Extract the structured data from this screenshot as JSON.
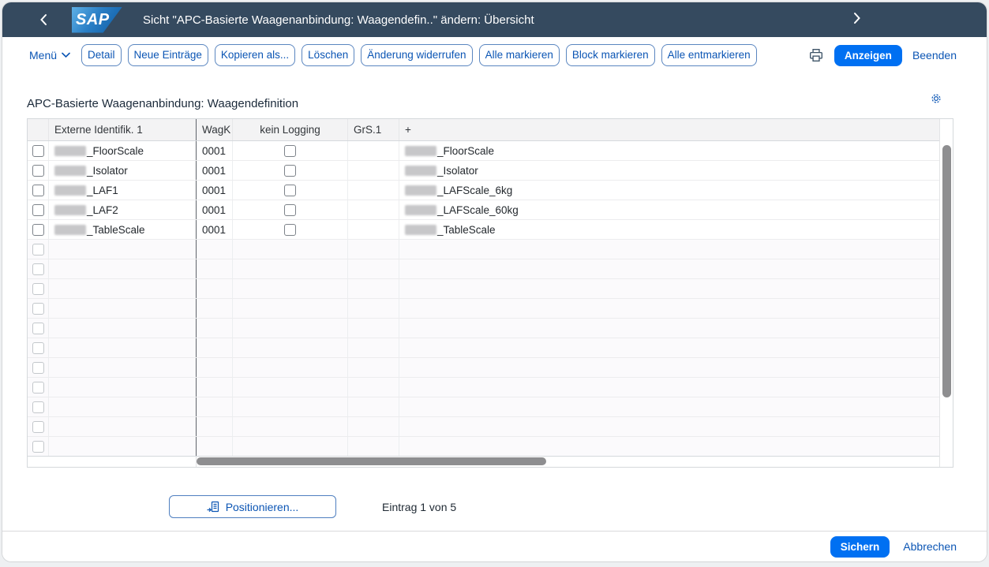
{
  "colors": {
    "shell_bg": "#354a5f",
    "accent_blue": "#0070f2",
    "link_blue": "#0b55b4",
    "button_border": "#5a86c0"
  },
  "titlebar": {
    "logo_text": "SAP",
    "title": "Sicht \"APC-Basierte Waagenanbindung: Waagendefin..\" ändern: Übersicht",
    "back_icon": "chevron-left",
    "forward_icon": "chevron-right"
  },
  "toolbar": {
    "menu_label": "Menü",
    "buttons": [
      {
        "name": "detail",
        "label": "Detail"
      },
      {
        "name": "neue-eintraege",
        "label": "Neue Einträge"
      },
      {
        "name": "kopieren-als",
        "label": "Kopieren als..."
      },
      {
        "name": "loeschen",
        "label": "Löschen"
      },
      {
        "name": "aenderung-widerrufen",
        "label": "Änderung widerrufen"
      },
      {
        "name": "alle-markieren",
        "label": "Alle markieren"
      },
      {
        "name": "block-markieren",
        "label": "Block markieren"
      },
      {
        "name": "alle-entmarkieren",
        "label": "Alle entmarkieren"
      }
    ],
    "print_icon": "printer-icon",
    "display_label": "Anzeigen",
    "end_label": "Beenden"
  },
  "table": {
    "title": "APC-Basierte Waagenanbindung: Waagendefinition",
    "settings_icon": "gear-icon",
    "columns": [
      {
        "name": "row-select",
        "label": ""
      },
      {
        "name": "externe-identifik-1",
        "label": "Externe Identifik. 1"
      },
      {
        "name": "wagk",
        "label": "WagK"
      },
      {
        "name": "kein-logging",
        "label": "kein Logging"
      },
      {
        "name": "grs-1",
        "label": "GrS.1"
      },
      {
        "name": "plus",
        "label": "+"
      }
    ],
    "rows": [
      {
        "prefix_redacted": true,
        "ext_id": "_FloorScale",
        "wagk": "0001",
        "kein_logging_checked": false,
        "grs": "",
        "plus": "_FloorScale"
      },
      {
        "prefix_redacted": true,
        "ext_id": "_Isolator",
        "wagk": "0001",
        "kein_logging_checked": false,
        "grs": "",
        "plus": "_Isolator"
      },
      {
        "prefix_redacted": true,
        "ext_id": "_LAF1",
        "wagk": "0001",
        "kein_logging_checked": false,
        "grs": "",
        "plus": "_LAFScale_6kg"
      },
      {
        "prefix_redacted": true,
        "ext_id": "_LAF2",
        "wagk": "0001",
        "kein_logging_checked": false,
        "grs": "",
        "plus": "_LAFScale_60kg"
      },
      {
        "prefix_redacted": true,
        "ext_id": "_TableScale",
        "wagk": "0001",
        "kein_logging_checked": false,
        "grs": "",
        "plus": "_TableScale"
      }
    ],
    "empty_row_count": 11
  },
  "bottom": {
    "position_label": "Positionieren...",
    "entry_status": "Eintrag 1 von 5"
  },
  "footer": {
    "save_label": "Sichern",
    "cancel_label": "Abbrechen"
  }
}
